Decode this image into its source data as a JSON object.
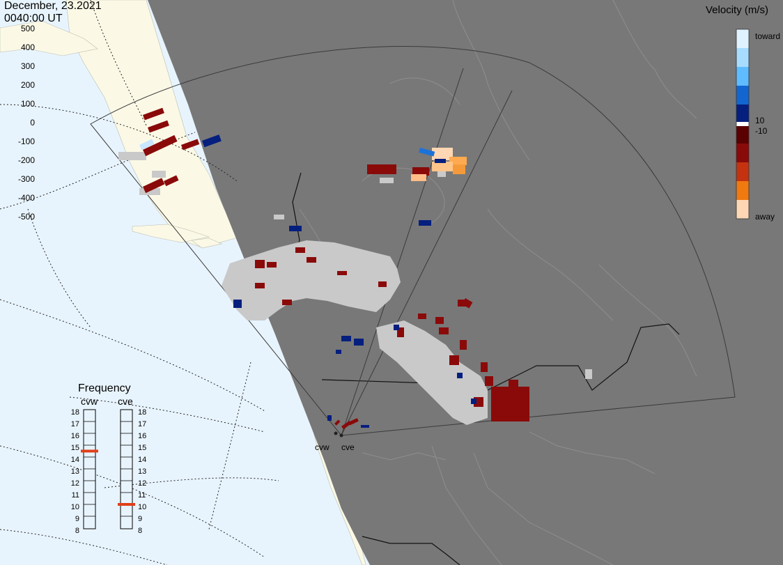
{
  "header": {
    "date": "December, 23.2021",
    "time": "0040:00 UT"
  },
  "velocity_scale": {
    "title": "Velocity (m/s)",
    "ticks": [
      "500",
      "400",
      "300",
      "200",
      "100",
      "0",
      "-100",
      "-200",
      "-300",
      "-400",
      "-500"
    ],
    "inner_ticks": [
      "10",
      "-10"
    ],
    "toward_label": "toward",
    "away_label": "away",
    "colors": [
      "#dff2ff",
      "#a8dcff",
      "#5fbcff",
      "#2a95f0",
      "#1366d0",
      "#0a3fa8",
      "#051f7e",
      "#ffffff",
      "#5a0000",
      "#8a0a0a",
      "#b02a10",
      "#d84a10",
      "#f07a10",
      "#ffaa50",
      "#ffd7b4"
    ]
  },
  "frequency_panel": {
    "title": "Frequency",
    "columns": [
      {
        "name": "cvw",
        "selected_mhz": 15
      },
      {
        "name": "cve",
        "selected_mhz": 10.5
      }
    ],
    "scale": [
      "18",
      "17",
      "16",
      "15",
      "14",
      "13",
      "12",
      "11",
      "10",
      "9",
      "8"
    ],
    "marker_color": "#e0401a"
  },
  "sites": [
    "cvw",
    "cve"
  ],
  "colors": {
    "land": "#787878",
    "ocean": "#e8f4fd",
    "uncovered_land": "#fbf9e6",
    "ground_scatter": "#c9c9c9"
  }
}
